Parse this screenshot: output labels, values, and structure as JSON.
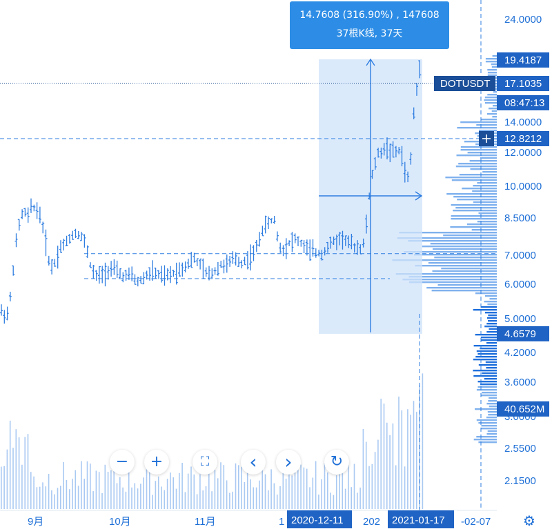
{
  "chart_data": {
    "type": "candlestick",
    "symbol": "DOTUSDT",
    "last_price": "17.1035",
    "countdown": "08:47:13",
    "crosshair_price": "12.8212",
    "y_axis": {
      "scale": "log",
      "ticks": [
        "24.0000",
        "14.0000",
        "12.0000",
        "10.0000",
        "8.5000",
        "7.0000",
        "6.0000",
        "5.0000",
        "4.2000",
        "3.6000",
        "3.0000",
        "2.5500",
        "2.1500"
      ],
      "tags": [
        {
          "label": "19.4187",
          "value": 19.4187
        },
        {
          "label": "4.6579",
          "value": 4.6579
        }
      ]
    },
    "volume_tag": "40.652M",
    "x_axis": {
      "ticks": [
        "9月",
        "10月",
        "11月",
        "1",
        "202",
        "-02-07"
      ],
      "range_start": "2020-12-11",
      "range_end": "2021-01-17"
    },
    "measure": {
      "line1": "14.7608 (316.90%) , 147608",
      "line2": "37根K线, 37天"
    },
    "value_area": {
      "high": 4.65,
      "low": 3.9
    }
  },
  "controls": {
    "zoom_out": "−",
    "zoom_in": "+",
    "reset": "⛶",
    "scroll_left": "‹",
    "scroll_right": "›",
    "refresh": "↻"
  },
  "icons": {
    "settings": "gear-icon",
    "crosshair": "crosshair-icon"
  },
  "colors": {
    "accent": "#1e6fd6",
    "tag_bg": "#1f63c4",
    "bars": "#2e7de0",
    "volume": "#a9c9f2",
    "profile": "#2e7de0",
    "measure_fill": "#cfe3fa"
  }
}
